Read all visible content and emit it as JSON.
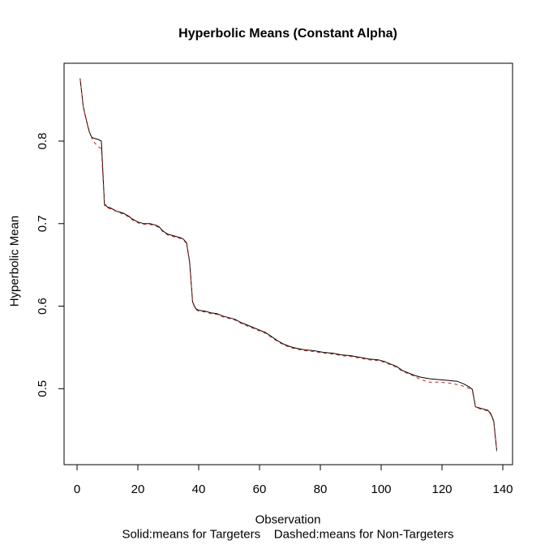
{
  "figure": {
    "title": "Hyperbolic Means (Constant Alpha)",
    "xlabel": "Observation",
    "ylabel": "Hyperbolic Mean",
    "caption": "Solid:means for Targeters    Dashed:means for Non-Targeters"
  },
  "chart_data": {
    "type": "line",
    "title": "Hyperbolic Means (Constant Alpha)",
    "xlabel": "Observation",
    "ylabel": "Hyperbolic Mean",
    "legend_note": "Solid:means for Targeters    Dashed:means for Non-Targeters",
    "x_ticks": [
      0,
      20,
      40,
      60,
      80,
      100,
      120,
      140
    ],
    "y_ticks": [
      0.5,
      0.6,
      0.7,
      0.8
    ],
    "xlim": [
      0,
      143
    ],
    "ylim": [
      0.41,
      0.895
    ],
    "grid": false,
    "legend_position": "bottom-caption",
    "colors": {
      "targeters": "#000000",
      "non_targeters": "#bb2222"
    },
    "series": [
      {
        "name": "means for Targeters",
        "style": "solid",
        "color": "#000000",
        "points": [
          [
            1,
            0.876
          ],
          [
            1.5,
            0.86
          ],
          [
            2,
            0.843
          ],
          [
            2.5,
            0.834
          ],
          [
            3,
            0.826
          ],
          [
            3.5,
            0.819
          ],
          [
            4,
            0.812
          ],
          [
            4.5,
            0.807
          ],
          [
            5,
            0.804
          ],
          [
            6,
            0.803
          ],
          [
            7,
            0.802
          ],
          [
            8,
            0.8
          ],
          [
            9,
            0.724
          ],
          [
            10,
            0.72
          ],
          [
            11,
            0.719
          ],
          [
            12,
            0.717
          ],
          [
            13,
            0.715
          ],
          [
            14,
            0.714
          ],
          [
            15,
            0.713
          ],
          [
            16,
            0.711
          ],
          [
            17,
            0.709
          ],
          [
            18,
            0.706
          ],
          [
            19,
            0.704
          ],
          [
            20,
            0.702
          ],
          [
            21,
            0.701
          ],
          [
            22,
            0.7
          ],
          [
            23,
            0.7
          ],
          [
            24,
            0.7
          ],
          [
            25,
            0.699
          ],
          [
            26,
            0.698
          ],
          [
            27,
            0.696
          ],
          [
            28,
            0.692
          ],
          [
            29,
            0.689
          ],
          [
            30,
            0.687
          ],
          [
            31,
            0.686
          ],
          [
            32,
            0.685
          ],
          [
            33,
            0.684
          ],
          [
            34,
            0.683
          ],
          [
            35,
            0.681
          ],
          [
            36,
            0.677
          ],
          [
            37,
            0.654
          ],
          [
            38,
            0.605
          ],
          [
            39,
            0.597
          ],
          [
            40,
            0.595
          ],
          [
            42,
            0.594
          ],
          [
            44,
            0.592
          ],
          [
            46,
            0.591
          ],
          [
            48,
            0.588
          ],
          [
            50,
            0.586
          ],
          [
            52,
            0.584
          ],
          [
            54,
            0.58
          ],
          [
            56,
            0.577
          ],
          [
            58,
            0.574
          ],
          [
            60,
            0.571
          ],
          [
            62,
            0.568
          ],
          [
            64,
            0.563
          ],
          [
            66,
            0.558
          ],
          [
            68,
            0.554
          ],
          [
            70,
            0.551
          ],
          [
            72,
            0.549
          ],
          [
            75,
            0.547
          ],
          [
            78,
            0.546
          ],
          [
            81,
            0.544
          ],
          [
            84,
            0.543
          ],
          [
            87,
            0.541
          ],
          [
            90,
            0.54
          ],
          [
            93,
            0.538
          ],
          [
            96,
            0.536
          ],
          [
            99,
            0.535
          ],
          [
            101,
            0.533
          ],
          [
            103,
            0.53
          ],
          [
            105,
            0.527
          ],
          [
            107,
            0.522
          ],
          [
            109,
            0.519
          ],
          [
            111,
            0.516
          ],
          [
            113,
            0.514
          ],
          [
            116,
            0.512
          ],
          [
            119,
            0.511
          ],
          [
            122,
            0.51
          ],
          [
            125,
            0.509
          ],
          [
            127,
            0.506
          ],
          [
            128,
            0.504
          ],
          [
            129,
            0.502
          ],
          [
            130,
            0.499
          ],
          [
            131,
            0.478
          ],
          [
            132,
            0.477
          ],
          [
            134,
            0.475
          ],
          [
            135,
            0.474
          ],
          [
            136,
            0.47
          ],
          [
            137,
            0.461
          ],
          [
            138,
            0.425
          ]
        ]
      },
      {
        "name": "means for Non-Targeters",
        "style": "dashed",
        "color": "#bb2222",
        "points": [
          [
            1,
            0.875
          ],
          [
            1.5,
            0.861
          ],
          [
            2,
            0.842
          ],
          [
            2.5,
            0.834
          ],
          [
            3,
            0.827
          ],
          [
            3.5,
            0.818
          ],
          [
            4,
            0.811
          ],
          [
            4.5,
            0.807
          ],
          [
            5,
            0.802
          ],
          [
            6,
            0.797
          ],
          [
            7,
            0.793
          ],
          [
            8,
            0.791
          ],
          [
            9,
            0.722
          ],
          [
            10,
            0.719
          ],
          [
            11,
            0.718
          ],
          [
            12,
            0.716
          ],
          [
            13,
            0.715
          ],
          [
            14,
            0.713
          ],
          [
            15,
            0.712
          ],
          [
            16,
            0.71
          ],
          [
            17,
            0.708
          ],
          [
            18,
            0.705
          ],
          [
            19,
            0.703
          ],
          [
            20,
            0.701
          ],
          [
            21,
            0.7
          ],
          [
            22,
            0.699
          ],
          [
            23,
            0.699
          ],
          [
            24,
            0.699
          ],
          [
            25,
            0.698
          ],
          [
            26,
            0.697
          ],
          [
            27,
            0.695
          ],
          [
            28,
            0.691
          ],
          [
            29,
            0.688
          ],
          [
            30,
            0.686
          ],
          [
            31,
            0.685
          ],
          [
            32,
            0.684
          ],
          [
            33,
            0.683
          ],
          [
            34,
            0.682
          ],
          [
            35,
            0.68
          ],
          [
            36,
            0.676
          ],
          [
            37,
            0.652
          ],
          [
            38,
            0.604
          ],
          [
            39,
            0.596
          ],
          [
            40,
            0.594
          ],
          [
            42,
            0.593
          ],
          [
            44,
            0.591
          ],
          [
            46,
            0.59
          ],
          [
            48,
            0.587
          ],
          [
            50,
            0.585
          ],
          [
            52,
            0.583
          ],
          [
            54,
            0.579
          ],
          [
            56,
            0.576
          ],
          [
            58,
            0.573
          ],
          [
            60,
            0.57
          ],
          [
            62,
            0.567
          ],
          [
            64,
            0.562
          ],
          [
            66,
            0.557
          ],
          [
            68,
            0.553
          ],
          [
            70,
            0.55
          ],
          [
            72,
            0.548
          ],
          [
            75,
            0.546
          ],
          [
            78,
            0.545
          ],
          [
            81,
            0.543
          ],
          [
            84,
            0.542
          ],
          [
            87,
            0.54
          ],
          [
            90,
            0.539
          ],
          [
            93,
            0.537
          ],
          [
            96,
            0.535
          ],
          [
            99,
            0.534
          ],
          [
            101,
            0.532
          ],
          [
            103,
            0.529
          ],
          [
            105,
            0.526
          ],
          [
            107,
            0.521
          ],
          [
            109,
            0.518
          ],
          [
            111,
            0.515
          ],
          [
            113,
            0.511
          ],
          [
            116,
            0.508
          ],
          [
            119,
            0.508
          ],
          [
            122,
            0.507
          ],
          [
            125,
            0.505
          ],
          [
            127,
            0.503
          ],
          [
            128,
            0.502
          ],
          [
            129,
            0.5
          ],
          [
            130,
            0.497
          ],
          [
            131,
            0.477
          ],
          [
            132,
            0.476
          ],
          [
            134,
            0.474
          ],
          [
            135,
            0.473
          ],
          [
            136,
            0.469
          ],
          [
            137,
            0.46
          ],
          [
            138,
            0.424
          ]
        ]
      }
    ]
  }
}
